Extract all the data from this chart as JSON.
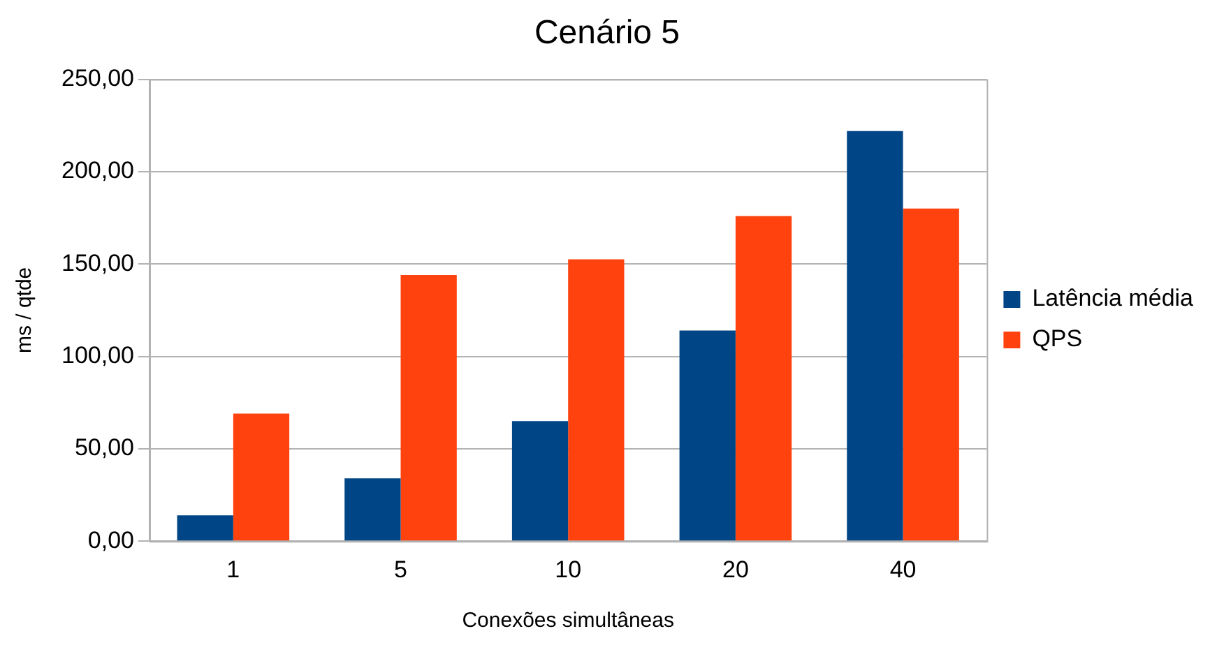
{
  "chart_data": {
    "type": "bar",
    "title": "Cenário 5",
    "xlabel": "Conexões simultâneas",
    "ylabel": "ms / qtde",
    "categories": [
      "1",
      "5",
      "10",
      "20",
      "40"
    ],
    "series": [
      {
        "name": "Latência média",
        "color": "#004586",
        "values": [
          14,
          34,
          65,
          114,
          222
        ]
      },
      {
        "name": "QPS",
        "color": "#ff420e",
        "values": [
          69,
          144,
          152.5,
          176,
          180
        ]
      }
    ],
    "ylim": [
      0,
      250
    ],
    "yticks": [
      {
        "value": 0,
        "label": "0,00"
      },
      {
        "value": 50,
        "label": "50,00"
      },
      {
        "value": 100,
        "label": "100,00"
      },
      {
        "value": 150,
        "label": "150,00"
      },
      {
        "value": 200,
        "label": "200,00"
      },
      {
        "value": 250,
        "label": "250,00"
      }
    ],
    "grid": "y",
    "legend": "right"
  }
}
